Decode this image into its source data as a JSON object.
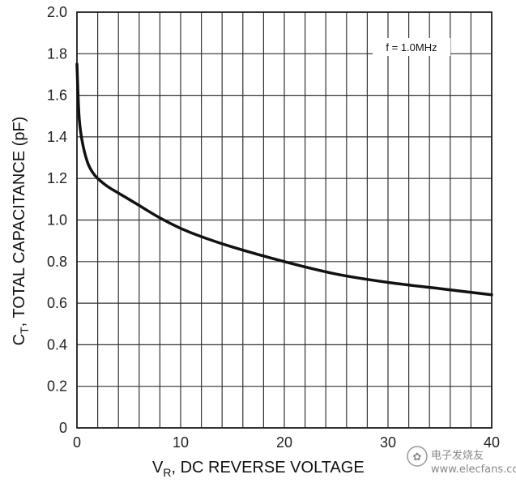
{
  "chart_data": {
    "type": "line",
    "xlabel_main": "V",
    "xlabel_sub": "R",
    "xlabel_rest": ", DC REVERSE VOLTAGE",
    "ylabel_main": "C",
    "ylabel_sub": "T",
    "ylabel_rest": ", TOTAL CAPACITANCE (pF)",
    "annotation": "f = 1.0MHz",
    "xlim": [
      0,
      40
    ],
    "ylim": [
      0,
      2.0
    ],
    "x_ticks": [
      "0",
      "10",
      "20",
      "30",
      "40"
    ],
    "y_ticks": [
      "0",
      "0.2",
      "0.4",
      "0.6",
      "0.8",
      "1.0",
      "1.2",
      "1.4",
      "1.6",
      "1.8",
      "2.0"
    ],
    "grid": true,
    "series": [
      {
        "x": [
          0,
          0.2,
          0.5,
          1,
          1.5,
          2,
          3,
          4,
          5,
          6,
          8,
          10,
          12,
          15,
          20,
          25,
          30,
          35,
          40
        ],
        "y": [
          1.75,
          1.5,
          1.38,
          1.28,
          1.23,
          1.2,
          1.16,
          1.13,
          1.1,
          1.07,
          1.01,
          0.96,
          0.92,
          0.87,
          0.8,
          0.74,
          0.7,
          0.67,
          0.64
        ]
      }
    ]
  },
  "watermark": {
    "logo_glyph": "✿",
    "line1": "电子发烧友",
    "line2": "www.elecfans.com"
  }
}
